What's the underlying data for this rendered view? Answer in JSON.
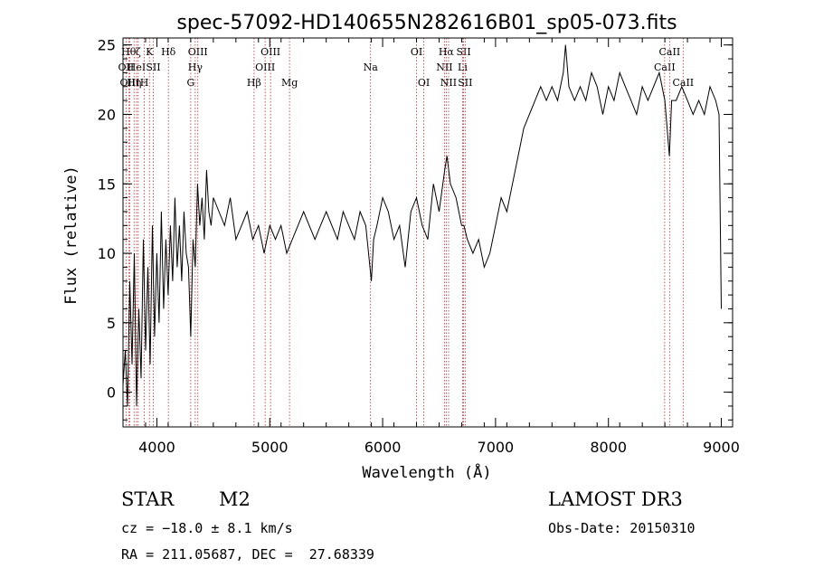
{
  "chart_data": {
    "type": "line",
    "title": "spec-57092-HD140655N282616B01_sp05-073.fits",
    "xlabel": "Wavelength (Å)",
    "ylabel": "Flux (relative)",
    "xlim": [
      3700,
      9100
    ],
    "ylim": [
      -2.5,
      25.5
    ],
    "xticks": [
      4000,
      5000,
      6000,
      7000,
      8000,
      9000
    ],
    "yticks": [
      0,
      5,
      10,
      15,
      20,
      25
    ],
    "grid": false,
    "series": [
      {
        "x": [
          3700,
          3720,
          3740,
          3760,
          3780,
          3800,
          3820,
          3840,
          3860,
          3880,
          3900,
          3920,
          3940,
          3960,
          3980,
          4000,
          4020,
          4040,
          4060,
          4080,
          4100,
          4120,
          4140,
          4160,
          4180,
          4200,
          4220,
          4240,
          4260,
          4280,
          4300,
          4320,
          4340,
          4360,
          4380,
          4400,
          4420,
          4440,
          4460,
          4480,
          4500,
          4550,
          4600,
          4650,
          4700,
          4750,
          4800,
          4850,
          4900,
          4950,
          5000,
          5050,
          5100,
          5150,
          5200,
          5250,
          5300,
          5350,
          5400,
          5450,
          5500,
          5550,
          5600,
          5650,
          5700,
          5750,
          5800,
          5850,
          5900,
          5920,
          5950,
          6000,
          6050,
          6100,
          6150,
          6200,
          6250,
          6300,
          6350,
          6400,
          6450,
          6500,
          6550,
          6570,
          6600,
          6650,
          6700,
          6720,
          6750,
          6800,
          6850,
          6900,
          6950,
          7000,
          7050,
          7100,
          7150,
          7200,
          7250,
          7300,
          7350,
          7400,
          7450,
          7500,
          7550,
          7600,
          7620,
          7650,
          7700,
          7750,
          7800,
          7850,
          7900,
          7950,
          8000,
          8050,
          8100,
          8150,
          8200,
          8250,
          8300,
          8350,
          8400,
          8450,
          8500,
          8540,
          8560,
          8600,
          8650,
          8700,
          8750,
          8800,
          8850,
          8900,
          8950,
          8980,
          9000
        ],
        "y": [
          0.5,
          3,
          -1,
          8,
          2,
          10,
          -1,
          6,
          1,
          11,
          3,
          9,
          2,
          12,
          4,
          10,
          5,
          13,
          6,
          11,
          7,
          12,
          8,
          14,
          9,
          12,
          8,
          13,
          10,
          9,
          4,
          11,
          9,
          15,
          12,
          14,
          11,
          16,
          13,
          12,
          14,
          13,
          12,
          14,
          11,
          12,
          13,
          11,
          12,
          10,
          12,
          11,
          12,
          10,
          11,
          12,
          13,
          12,
          11,
          12,
          13,
          12,
          11,
          13,
          12,
          11,
          13,
          12,
          8,
          11,
          12,
          14,
          13,
          11,
          12,
          9,
          13,
          14,
          12,
          11,
          15,
          13,
          16,
          17,
          15,
          14,
          12,
          12,
          11,
          10,
          11,
          9,
          10,
          12,
          14,
          13,
          15,
          17,
          19,
          20,
          21,
          22,
          21,
          22,
          21,
          23,
          25,
          22,
          21,
          22,
          21,
          23,
          22,
          20,
          22,
          21,
          23,
          22,
          21,
          20,
          22,
          21,
          22,
          23,
          21,
          17,
          21,
          21,
          22,
          21,
          20,
          21,
          20,
          22,
          21,
          20,
          6
        ]
      }
    ],
    "lines": [
      {
        "w": 3727,
        "label": "OII",
        "row": 1
      },
      {
        "w": 3750,
        "label": "Hθ",
        "row": 0
      },
      {
        "w": 3760,
        "label": "OIII",
        "row": 2
      },
      {
        "w": 3798,
        "label": "Hη",
        "row": 2
      },
      {
        "w": 3820,
        "label": "HeI",
        "row": 1
      },
      {
        "w": 3835,
        "label": "ζ",
        "row": 0
      },
      {
        "w": 3889,
        "label": "H",
        "row": 2
      },
      {
        "w": 3934,
        "label": "K",
        "row": 0
      },
      {
        "w": 3968,
        "label": "SII",
        "row": 1
      },
      {
        "w": 4102,
        "label": "Hδ",
        "row": 0
      },
      {
        "w": 4300,
        "label": "G",
        "row": 2
      },
      {
        "w": 4340,
        "label": "Hγ",
        "row": 1
      },
      {
        "w": 4363,
        "label": "OIII",
        "row": 0
      },
      {
        "w": 4861,
        "label": "Hβ",
        "row": 2
      },
      {
        "w": 4959,
        "label": "OIII",
        "row": 1
      },
      {
        "w": 5007,
        "label": "OIII",
        "row": 0
      },
      {
        "w": 5175,
        "label": "Mg",
        "row": 2
      },
      {
        "w": 5893,
        "label": "Na",
        "row": 1
      },
      {
        "w": 6300,
        "label": "OI",
        "row": 0
      },
      {
        "w": 6364,
        "label": "OI",
        "row": 2
      },
      {
        "w": 6548,
        "label": "NII",
        "row": 1
      },
      {
        "w": 6563,
        "label": "Hα",
        "row": 0
      },
      {
        "w": 6584,
        "label": "NII",
        "row": 2
      },
      {
        "w": 6708,
        "label": "Li",
        "row": 1
      },
      {
        "w": 6717,
        "label": "SII",
        "row": 0
      },
      {
        "w": 6731,
        "label": "SII",
        "row": 2
      },
      {
        "w": 8498,
        "label": "CaII",
        "row": 1
      },
      {
        "w": 8542,
        "label": "CaII",
        "row": 0
      },
      {
        "w": 8662,
        "label": "CaII",
        "row": 2
      }
    ]
  },
  "info": {
    "object_class": "STAR",
    "subclass": "M2",
    "survey": "LAMOST DR3",
    "cz": "cz = −18.0 ± 8.1 km/s",
    "obs_date": "Obs-Date: 20150310",
    "coords": "RA = 211.05687, DEC =  27.68339"
  }
}
